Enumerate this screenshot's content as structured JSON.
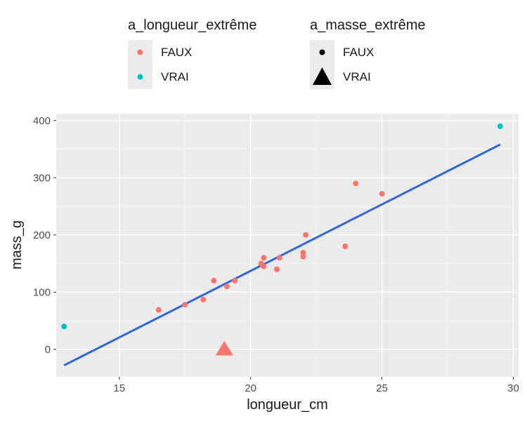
{
  "chart_data": {
    "type": "scatter",
    "xlabel": "longueur_cm",
    "ylabel": "mass_g",
    "xlim": [
      12.6,
      30.2
    ],
    "ylim": [
      -48,
      412
    ],
    "x_ticks": [
      15,
      20,
      25,
      30
    ],
    "y_ticks": [
      0,
      100,
      200,
      300,
      400
    ],
    "grid": true,
    "legend_position": "top",
    "legends": [
      {
        "title": "a_longueur_extrême",
        "entries": [
          {
            "label": "FAUX",
            "color": "#f8766d",
            "shape": "circle"
          },
          {
            "label": "VRAI",
            "color": "#00bfc4",
            "shape": "circle"
          }
        ]
      },
      {
        "title": "a_masse_extrême",
        "entries": [
          {
            "label": "FAUX",
            "color": "#000000",
            "shape": "circle"
          },
          {
            "label": "VRAI",
            "color": "#000000",
            "shape": "triangle"
          }
        ]
      }
    ],
    "points": [
      {
        "x": 12.9,
        "y": 40,
        "longueur_extreme": "VRAI",
        "masse_extreme": "FAUX"
      },
      {
        "x": 16.5,
        "y": 69,
        "longueur_extreme": "FAUX",
        "masse_extreme": "FAUX"
      },
      {
        "x": 17.5,
        "y": 78,
        "longueur_extreme": "FAUX",
        "masse_extreme": "FAUX"
      },
      {
        "x": 18.2,
        "y": 87,
        "longueur_extreme": "FAUX",
        "masse_extreme": "FAUX"
      },
      {
        "x": 18.6,
        "y": 120,
        "longueur_extreme": "FAUX",
        "masse_extreme": "FAUX"
      },
      {
        "x": 19.1,
        "y": 110,
        "longueur_extreme": "FAUX",
        "masse_extreme": "FAUX"
      },
      {
        "x": 19.4,
        "y": 120,
        "longueur_extreme": "FAUX",
        "masse_extreme": "FAUX"
      },
      {
        "x": 19.0,
        "y": 0,
        "longueur_extreme": "FAUX",
        "masse_extreme": "VRAI"
      },
      {
        "x": 20.4,
        "y": 150,
        "longueur_extreme": "FAUX",
        "masse_extreme": "FAUX"
      },
      {
        "x": 20.5,
        "y": 145,
        "longueur_extreme": "FAUX",
        "masse_extreme": "FAUX"
      },
      {
        "x": 20.5,
        "y": 160,
        "longueur_extreme": "FAUX",
        "masse_extreme": "FAUX"
      },
      {
        "x": 21.0,
        "y": 140,
        "longueur_extreme": "FAUX",
        "masse_extreme": "FAUX"
      },
      {
        "x": 21.1,
        "y": 160,
        "longueur_extreme": "FAUX",
        "masse_extreme": "FAUX"
      },
      {
        "x": 22.0,
        "y": 162,
        "longueur_extreme": "FAUX",
        "masse_extreme": "FAUX"
      },
      {
        "x": 22.0,
        "y": 169,
        "longueur_extreme": "FAUX",
        "masse_extreme": "FAUX"
      },
      {
        "x": 22.1,
        "y": 200,
        "longueur_extreme": "FAUX",
        "masse_extreme": "FAUX"
      },
      {
        "x": 23.6,
        "y": 180,
        "longueur_extreme": "FAUX",
        "masse_extreme": "FAUX"
      },
      {
        "x": 24.0,
        "y": 290,
        "longueur_extreme": "FAUX",
        "masse_extreme": "FAUX"
      },
      {
        "x": 25.0,
        "y": 272,
        "longueur_extreme": "FAUX",
        "masse_extreme": "FAUX"
      },
      {
        "x": 29.5,
        "y": 390,
        "longueur_extreme": "VRAI",
        "masse_extreme": "FAUX"
      }
    ],
    "regression_line": {
      "color": "#3366dd",
      "x": [
        12.9,
        29.5
      ],
      "y": [
        -28,
        358
      ]
    }
  }
}
